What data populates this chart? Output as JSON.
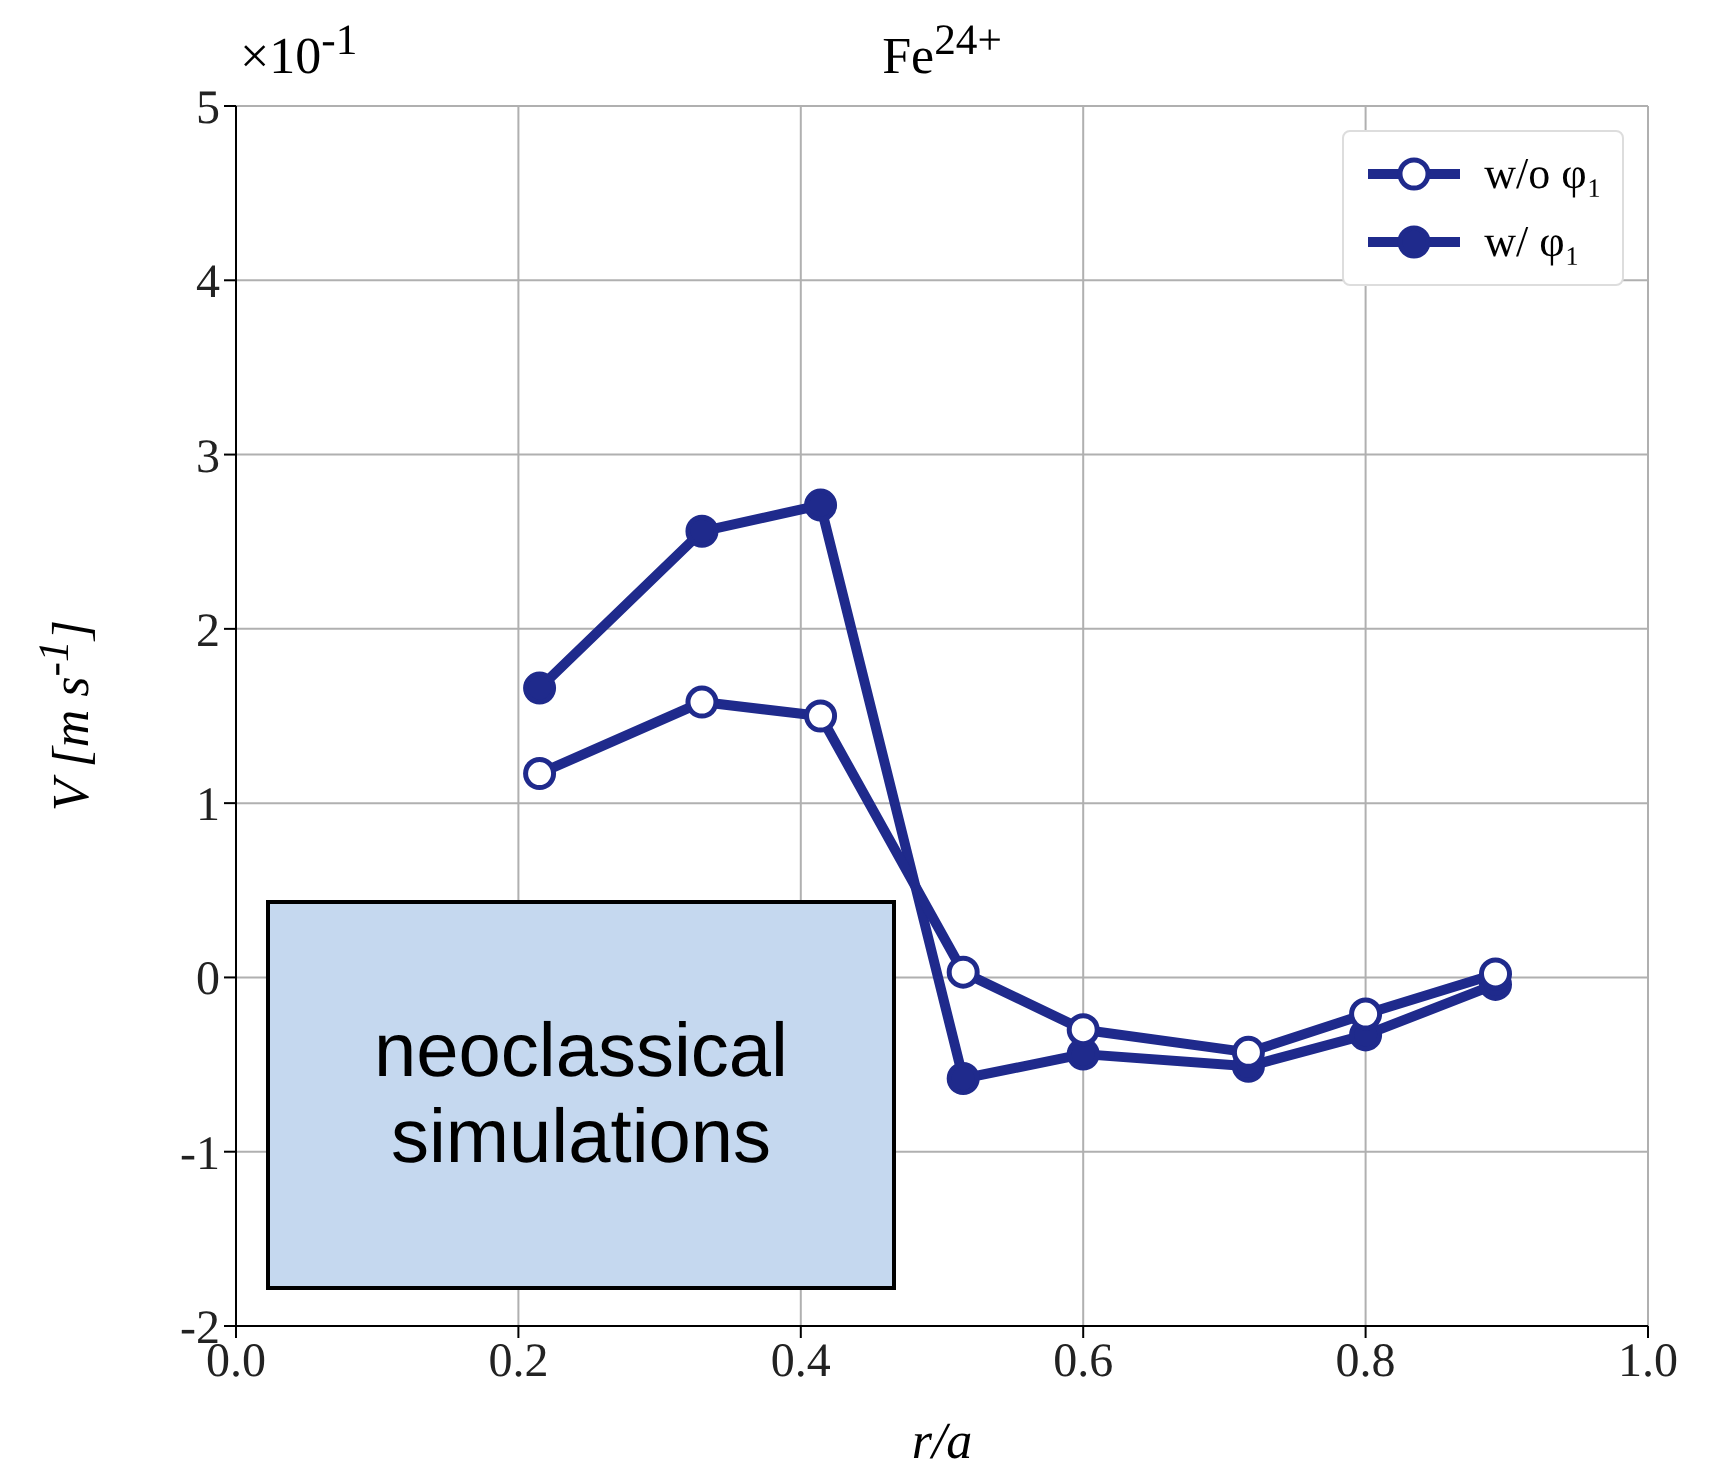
{
  "chart_data": {
    "type": "line",
    "title": "Fe$^{24+}$",
    "xlabel": "r/a",
    "ylabel": "V [m s$^{-1}$]",
    "annotations": [
      "×10$^{-1}$",
      "neoclassical simulations"
    ],
    "x": [
      0.215,
      0.33,
      0.414,
      0.515,
      0.6,
      0.717,
      0.8,
      0.892
    ],
    "series": [
      {
        "name": "w/o φ₁",
        "color": "#1f2a8c",
        "values": [
          1.17,
          1.58,
          1.5,
          0.03,
          -0.3,
          -0.43,
          -0.21,
          0.02
        ]
      },
      {
        "name": "w/ φ₁",
        "color": "#1f2a8c",
        "values": [
          1.66,
          2.56,
          2.71,
          -0.58,
          -0.44,
          -0.51,
          -0.33,
          -0.04
        ]
      }
    ],
    "xlim": [
      0,
      1
    ],
    "xticks": [
      {
        "value": 0,
        "label": "0.0"
      },
      {
        "value": 0.2,
        "label": "0.2"
      },
      {
        "value": 0.4,
        "label": "0.4"
      },
      {
        "value": 0.6,
        "label": "0.6"
      },
      {
        "value": 0.8,
        "label": "0.8"
      },
      {
        "value": 1,
        "label": "1.0"
      }
    ],
    "ylim": [
      -2,
      5
    ],
    "yticks": [
      -2,
      -1,
      0,
      1,
      2,
      3,
      4,
      5
    ],
    "grid": true,
    "legend": "top right",
    "marker": "circle",
    "line_style": "solid"
  }
}
